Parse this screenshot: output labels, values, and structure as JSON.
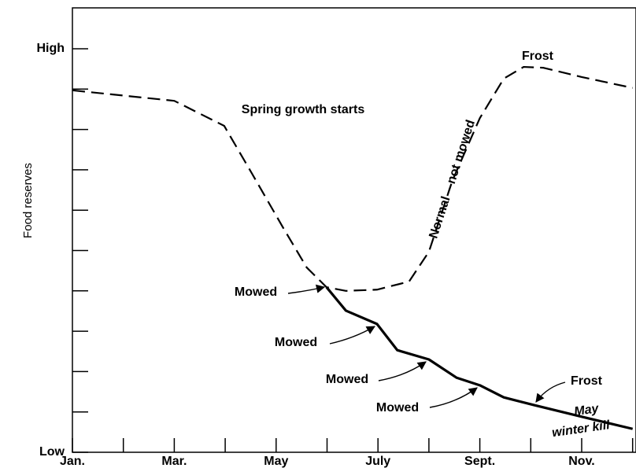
{
  "chart_data": {
    "type": "line",
    "ylabel": "Food reserves",
    "xlim": [
      1,
      12
    ],
    "xticks": [
      {
        "value": 1,
        "label": "Jan."
      },
      {
        "value": 3,
        "label": "Mar."
      },
      {
        "value": 5,
        "label": "May"
      },
      {
        "value": 7,
        "label": "July"
      },
      {
        "value": 9,
        "label": "Sept."
      },
      {
        "value": 11,
        "label": "Nov."
      }
    ],
    "xminorticks": [
      2,
      4,
      6,
      8,
      10,
      12
    ],
    "ylim": [
      0,
      11
    ],
    "yticks": [
      {
        "value": 0,
        "label": "Low"
      },
      {
        "value": 10,
        "label": "High"
      }
    ],
    "yminorticks": [
      1,
      2,
      3,
      4,
      5,
      6,
      7,
      8,
      9
    ],
    "series": [
      {
        "color": "#000000",
        "dashed": true,
        "x": [
          1,
          3,
          3.98,
          4.52,
          5.14,
          5.6,
          5.99,
          6.37,
          6.98,
          7.61,
          8.0,
          8.46,
          9.0,
          9.47,
          9.86,
          10.24,
          11.0,
          12.0
        ],
        "values": [
          8.97,
          8.71,
          8.09,
          6.92,
          5.56,
          4.58,
          4.09,
          4.0,
          4.03,
          4.23,
          4.97,
          6.73,
          8.28,
          9.26,
          9.55,
          9.53,
          9.3,
          9.03
        ]
      },
      {
        "color": "#000000",
        "dashed": false,
        "x": [
          5.99,
          6.37,
          6.98,
          7.38,
          8.0,
          8.54,
          9.0,
          9.47,
          10.06,
          11.0,
          12.0
        ],
        "values": [
          4.09,
          3.51,
          3.18,
          2.53,
          2.3,
          1.85,
          1.66,
          1.36,
          1.17,
          0.88,
          0.58
        ]
      }
    ],
    "annotations": [
      "Spring growth starts",
      "Frost",
      "Normal – not mowed",
      "Mowed",
      "Mowed",
      "Mowed",
      "Mowed",
      "Frost",
      "May",
      "winter kill"
    ]
  }
}
